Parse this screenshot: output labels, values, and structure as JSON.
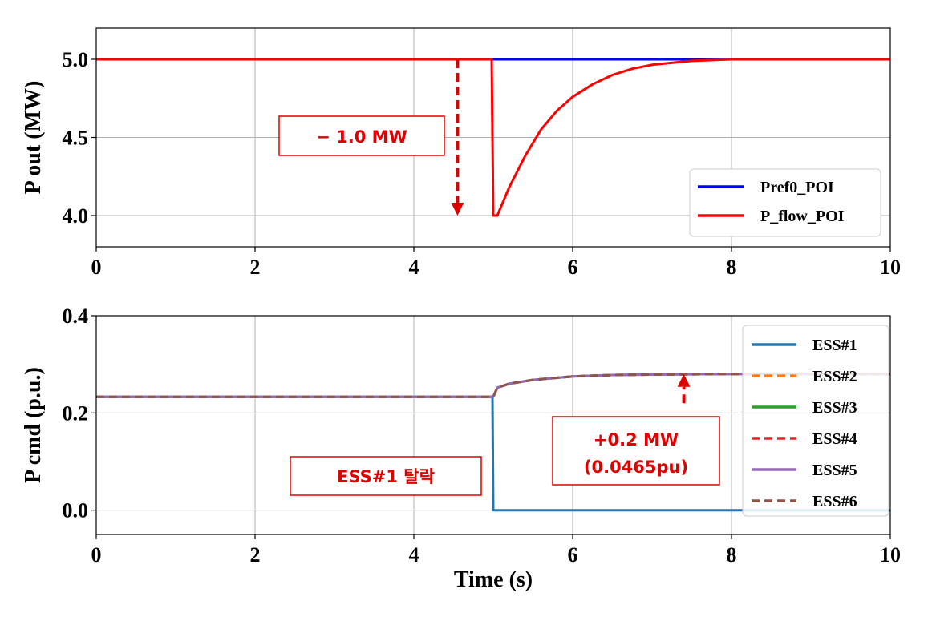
{
  "chart_data": [
    {
      "type": "line",
      "ylabel": "P out (MW)",
      "xlabel": "",
      "xlim": [
        0,
        10
      ],
      "ylim": [
        3.8,
        5.2
      ],
      "xticks": [
        0,
        2,
        4,
        6,
        8,
        10
      ],
      "xtick_labels": [
        "0",
        "2",
        "4",
        "6",
        "8",
        "10"
      ],
      "yticks": [
        4.0,
        4.5,
        5.0
      ],
      "ytick_labels": [
        "4.0",
        "4.5",
        "5.0"
      ],
      "grid": true,
      "legend_position": "lower-right",
      "series": [
        {
          "name": "Pref0_POI",
          "color": "#0000ff",
          "style": "solid",
          "x": [
            0,
            10
          ],
          "y": [
            5.0,
            5.0
          ]
        },
        {
          "name": "P_flow_POI",
          "color": "#ff0000",
          "style": "solid",
          "x": [
            0,
            4.98,
            5.0,
            5.05,
            5.2,
            5.4,
            5.6,
            5.8,
            6.0,
            6.25,
            6.5,
            6.75,
            7.0,
            7.5,
            8.0,
            9.0,
            10.0
          ],
          "y": [
            5.0,
            5.0,
            4.0,
            4.0,
            4.18,
            4.38,
            4.55,
            4.67,
            4.76,
            4.84,
            4.9,
            4.94,
            4.965,
            4.99,
            5.0,
            5.0,
            5.0
          ]
        }
      ],
      "annotations": [
        {
          "text": "− 1.0 MW",
          "arrow_x": 4.55,
          "arrow_from_y": 5.0,
          "arrow_to_y": 4.0
        }
      ]
    },
    {
      "type": "line",
      "ylabel": "P cmd (p.u.)",
      "xlabel": "Time (s)",
      "xlim": [
        0,
        10
      ],
      "ylim": [
        -0.05,
        0.4
      ],
      "xticks": [
        0,
        2,
        4,
        6,
        8,
        10
      ],
      "xtick_labels": [
        "0",
        "2",
        "4",
        "6",
        "8",
        "10"
      ],
      "yticks": [
        0.0,
        0.2,
        0.4
      ],
      "ytick_labels": [
        "0.0",
        "0.2",
        "0.4"
      ],
      "grid": true,
      "legend_position": "right",
      "series": [
        {
          "name": "ESS#1",
          "color": "#1f77b4",
          "style": "solid",
          "x": [
            0,
            4.99,
            5.0,
            10.0
          ],
          "y": [
            0.233,
            0.233,
            0.0,
            0.0
          ]
        },
        {
          "name": "ESS#2",
          "color": "#ff7f0e",
          "style": "dashed",
          "x": [
            0,
            5.0,
            5.05,
            5.2,
            5.5,
            6.0,
            6.5,
            7.0,
            8.0,
            10.0
          ],
          "y": [
            0.233,
            0.233,
            0.252,
            0.26,
            0.268,
            0.275,
            0.278,
            0.279,
            0.28,
            0.28
          ]
        },
        {
          "name": "ESS#3",
          "color": "#2ca02c",
          "style": "solid",
          "x": [
            0,
            5.0,
            5.05,
            5.2,
            5.5,
            6.0,
            6.5,
            7.0,
            8.0,
            10.0
          ],
          "y": [
            0.233,
            0.233,
            0.252,
            0.26,
            0.268,
            0.275,
            0.278,
            0.279,
            0.28,
            0.28
          ]
        },
        {
          "name": "ESS#4",
          "color": "#d62728",
          "style": "dashed",
          "x": [
            0,
            5.0,
            5.05,
            5.2,
            5.5,
            6.0,
            6.5,
            7.0,
            8.0,
            10.0
          ],
          "y": [
            0.233,
            0.233,
            0.252,
            0.26,
            0.268,
            0.275,
            0.278,
            0.279,
            0.28,
            0.28
          ]
        },
        {
          "name": "ESS#5",
          "color": "#9467bd",
          "style": "solid",
          "x": [
            0,
            5.0,
            5.05,
            5.2,
            5.5,
            6.0,
            6.5,
            7.0,
            8.0,
            10.0
          ],
          "y": [
            0.233,
            0.233,
            0.252,
            0.26,
            0.268,
            0.275,
            0.278,
            0.279,
            0.28,
            0.28
          ]
        },
        {
          "name": "ESS#6",
          "color": "#8c564b",
          "style": "dashed",
          "x": [
            0,
            5.0,
            5.05,
            5.2,
            5.5,
            6.0,
            6.5,
            7.0,
            8.0,
            10.0
          ],
          "y": [
            0.233,
            0.233,
            0.252,
            0.26,
            0.268,
            0.275,
            0.278,
            0.279,
            0.28,
            0.28
          ]
        }
      ],
      "annotations": [
        {
          "text": "ESS#1 탈락"
        },
        {
          "lines": [
            "+0.2 MW",
            "(0.0465pu)"
          ],
          "arrow_x": 7.4,
          "arrow_from_y": 0.22,
          "arrow_to_y": 0.28
        }
      ]
    }
  ]
}
